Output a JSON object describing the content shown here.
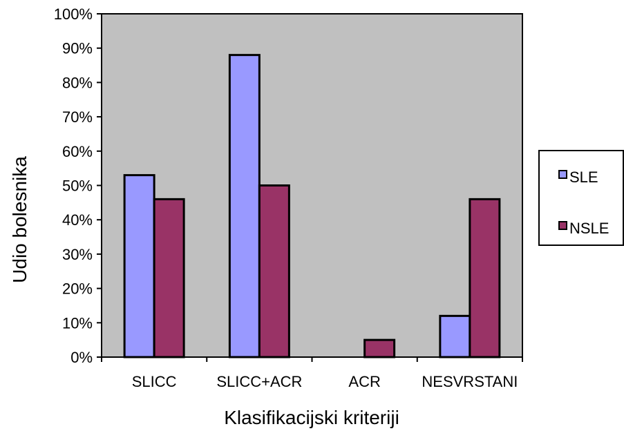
{
  "chart_data": {
    "type": "bar",
    "title": "",
    "xlabel": "Klasifikacijski kriteriji",
    "ylabel": "Udio bolesnika",
    "categories": [
      "SLICC",
      "SLICC+ACR",
      "ACR",
      "NESVRSTANI"
    ],
    "series": [
      {
        "name": "SLE",
        "values": [
          53,
          88,
          0,
          12
        ],
        "color": "#9999ff"
      },
      {
        "name": "NSLE",
        "values": [
          46,
          50,
          5,
          46
        ],
        "color": "#993366"
      }
    ],
    "ylim": [
      0,
      100
    ],
    "yticks": [
      0,
      10,
      20,
      30,
      40,
      50,
      60,
      70,
      80,
      90,
      100
    ],
    "ytick_suffix": "%",
    "grid": false,
    "plot_background": "#c0c0c0",
    "legend_position": "right"
  }
}
